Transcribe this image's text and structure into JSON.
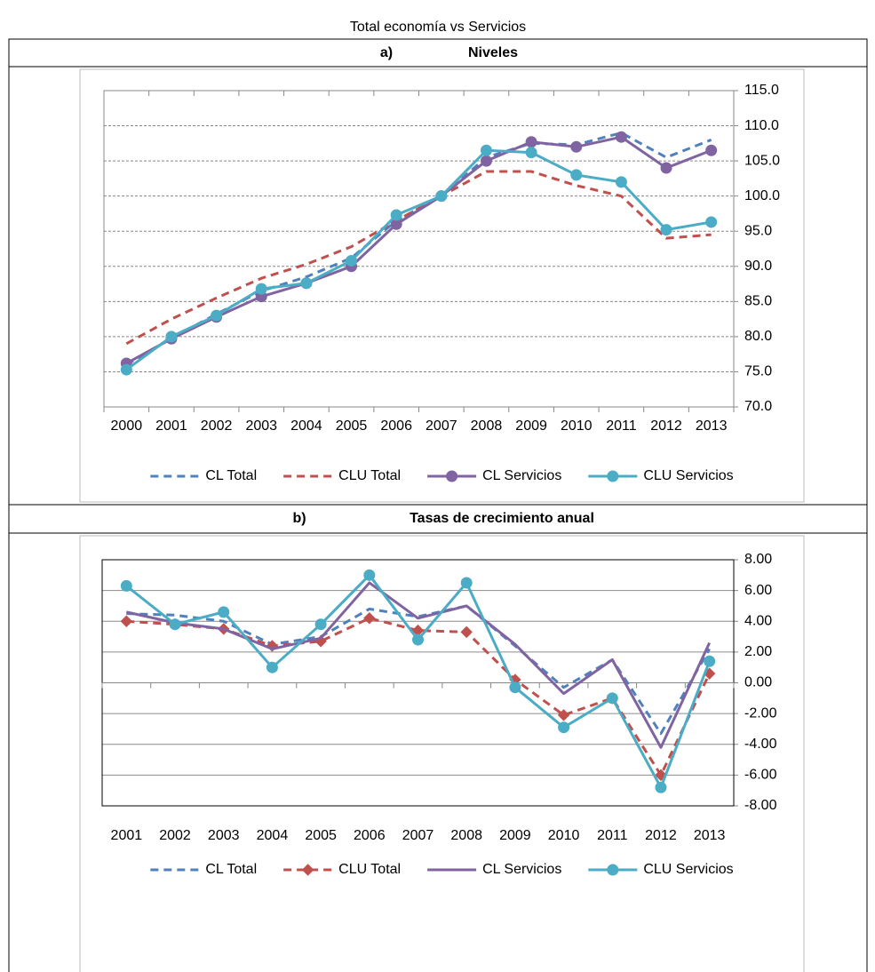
{
  "title": "Total economía vs Servicios",
  "chart_data": [
    {
      "type": "line",
      "panel": "a)",
      "title": "Niveles",
      "categories": [
        "2000",
        "2001",
        "2002",
        "2003",
        "2004",
        "2005",
        "2006",
        "2007",
        "2008",
        "2009",
        "2010",
        "2011",
        "2012",
        "2013"
      ],
      "series": [
        {
          "name": "CL Total",
          "color": "#4f81bd",
          "dash": true,
          "marker": "none",
          "values": [
            76.0,
            79.8,
            83.2,
            86.5,
            88.5,
            91.2,
            96.5,
            100,
            105.5,
            107.5,
            107.3,
            109.0,
            105.5,
            108.0
          ]
        },
        {
          "name": "CLU Total",
          "color": "#c0504d",
          "dash": true,
          "marker": "none",
          "values": [
            79.0,
            82.5,
            85.5,
            88.3,
            90.3,
            92.8,
            96.5,
            100,
            103.5,
            103.5,
            101.5,
            100.0,
            94.0,
            94.5
          ]
        },
        {
          "name": "CL Servicios",
          "color": "#8064a2",
          "dash": false,
          "marker": "circle",
          "values": [
            76.2,
            79.7,
            82.8,
            85.7,
            87.6,
            90.0,
            96.0,
            100,
            105.0,
            107.7,
            107.0,
            108.4,
            104.0,
            106.5
          ]
        },
        {
          "name": "CLU Servicios",
          "color": "#4bacc6",
          "dash": false,
          "marker": "circle",
          "values": [
            75.3,
            80.0,
            83.0,
            86.8,
            87.6,
            90.8,
            97.3,
            100,
            106.5,
            106.2,
            103.0,
            102.0,
            95.2,
            96.3
          ]
        }
      ],
      "ylim": [
        70,
        115
      ],
      "yticks": [
        {
          "value": 70,
          "label": "70.0"
        },
        {
          "value": 75,
          "label": "75.0"
        },
        {
          "value": 80,
          "label": "80.0"
        },
        {
          "value": 85,
          "label": "85.0"
        },
        {
          "value": 90,
          "label": "90.0"
        },
        {
          "value": 95,
          "label": "95.0"
        },
        {
          "value": 100,
          "label": "100.0"
        },
        {
          "value": 105,
          "label": "105.0"
        },
        {
          "value": 110,
          "label": "110.0"
        },
        {
          "value": 115,
          "label": "115.0"
        }
      ],
      "grid": true,
      "grid_style": "dashed",
      "legend": "bottom"
    },
    {
      "type": "line",
      "panel": "b)",
      "title": "Tasas de crecimiento anual",
      "categories": [
        "2001",
        "2002",
        "2003",
        "2004",
        "2005",
        "2006",
        "2007",
        "2008",
        "2009",
        "2010",
        "2011",
        "2012",
        "2013"
      ],
      "series": [
        {
          "name": "CL Total",
          "color": "#4f81bd",
          "dash": true,
          "marker": "none",
          "values": [
            4.5,
            4.4,
            4.0,
            2.5,
            3.0,
            4.8,
            4.3,
            5.0,
            2.4,
            -0.3,
            1.5,
            -3.3,
            2.2
          ]
        },
        {
          "name": "CLU Total",
          "color": "#c0504d",
          "dash": true,
          "marker": "diamond",
          "values": [
            4.0,
            3.8,
            3.5,
            2.4,
            2.7,
            4.2,
            3.4,
            3.3,
            0.2,
            -2.1,
            -1.0,
            -6.0,
            0.6
          ]
        },
        {
          "name": "CL Servicios",
          "color": "#8064a2",
          "dash": false,
          "marker": "none",
          "values": [
            4.6,
            3.9,
            3.5,
            2.2,
            2.9,
            6.5,
            4.2,
            5.0,
            2.5,
            -0.7,
            1.5,
            -4.2,
            2.6
          ]
        },
        {
          "name": "CLU Servicios",
          "color": "#4bacc6",
          "dash": false,
          "marker": "circle",
          "values": [
            6.3,
            3.8,
            4.6,
            1.0,
            3.8,
            7.0,
            2.8,
            6.5,
            -0.3,
            -2.9,
            -1.0,
            -6.8,
            1.4
          ]
        }
      ],
      "ylim": [
        -8,
        8
      ],
      "yticks": [
        {
          "value": -8,
          "label": "-8.00"
        },
        {
          "value": -6,
          "label": "-6.00"
        },
        {
          "value": -4,
          "label": "-4.00"
        },
        {
          "value": -2,
          "label": "-2.00"
        },
        {
          "value": 0,
          "label": "0.00"
        },
        {
          "value": 2,
          "label": "2.00"
        },
        {
          "value": 4,
          "label": "4.00"
        },
        {
          "value": 6,
          "label": "6.00"
        },
        {
          "value": 8,
          "label": "8.00"
        }
      ],
      "grid": true,
      "grid_style": "solid",
      "legend": "bottom"
    }
  ]
}
